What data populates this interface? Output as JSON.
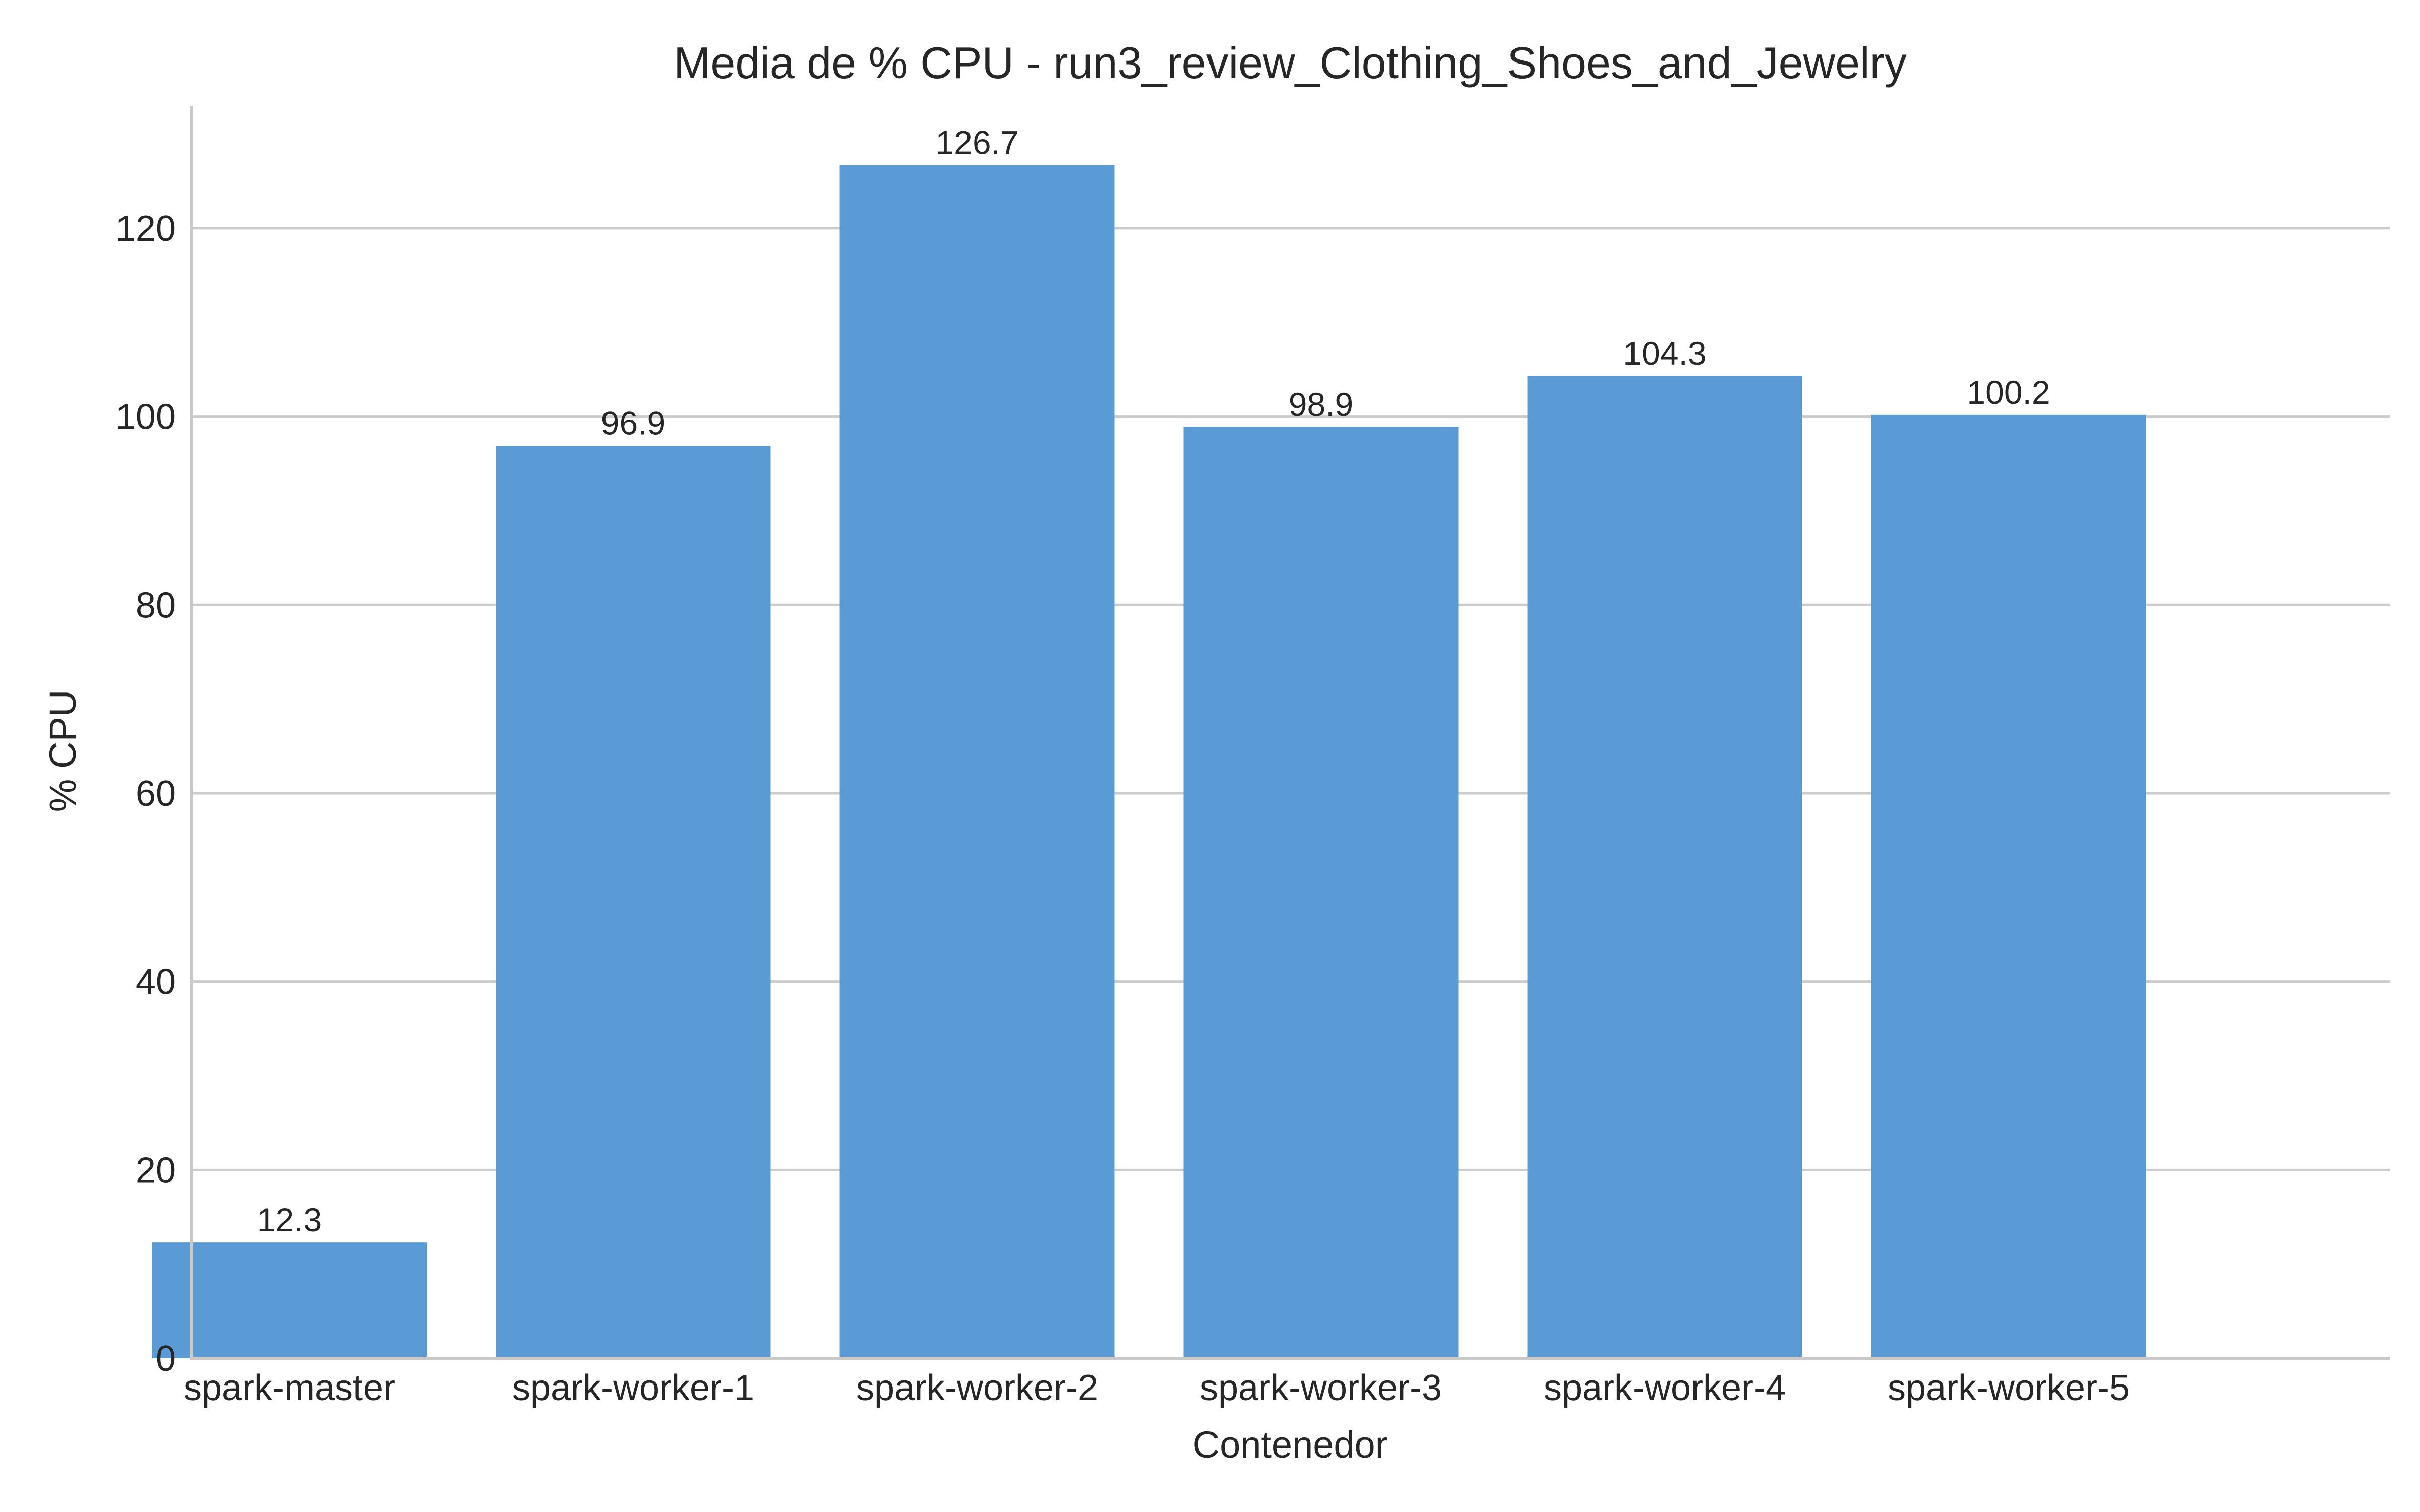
{
  "chart_data": {
    "type": "bar",
    "title": "Media de % CPU - run3_review_Clothing_Shoes_and_Jewelry",
    "xlabel": "Contenedor",
    "ylabel": "% CPU",
    "categories": [
      "spark-master",
      "spark-worker-1",
      "spark-worker-2",
      "spark-worker-3",
      "spark-worker-4",
      "spark-worker-5"
    ],
    "values": [
      12.3,
      96.9,
      126.7,
      98.9,
      104.3,
      100.2
    ],
    "value_labels": [
      "12.3",
      "96.9",
      "126.7",
      "98.9",
      "104.3",
      "100.2"
    ],
    "ylim": [
      0,
      133
    ],
    "yticks": [
      0,
      20,
      40,
      60,
      80,
      100,
      120
    ],
    "grid": "horizontal",
    "bar_color": "#5b9bd5"
  }
}
